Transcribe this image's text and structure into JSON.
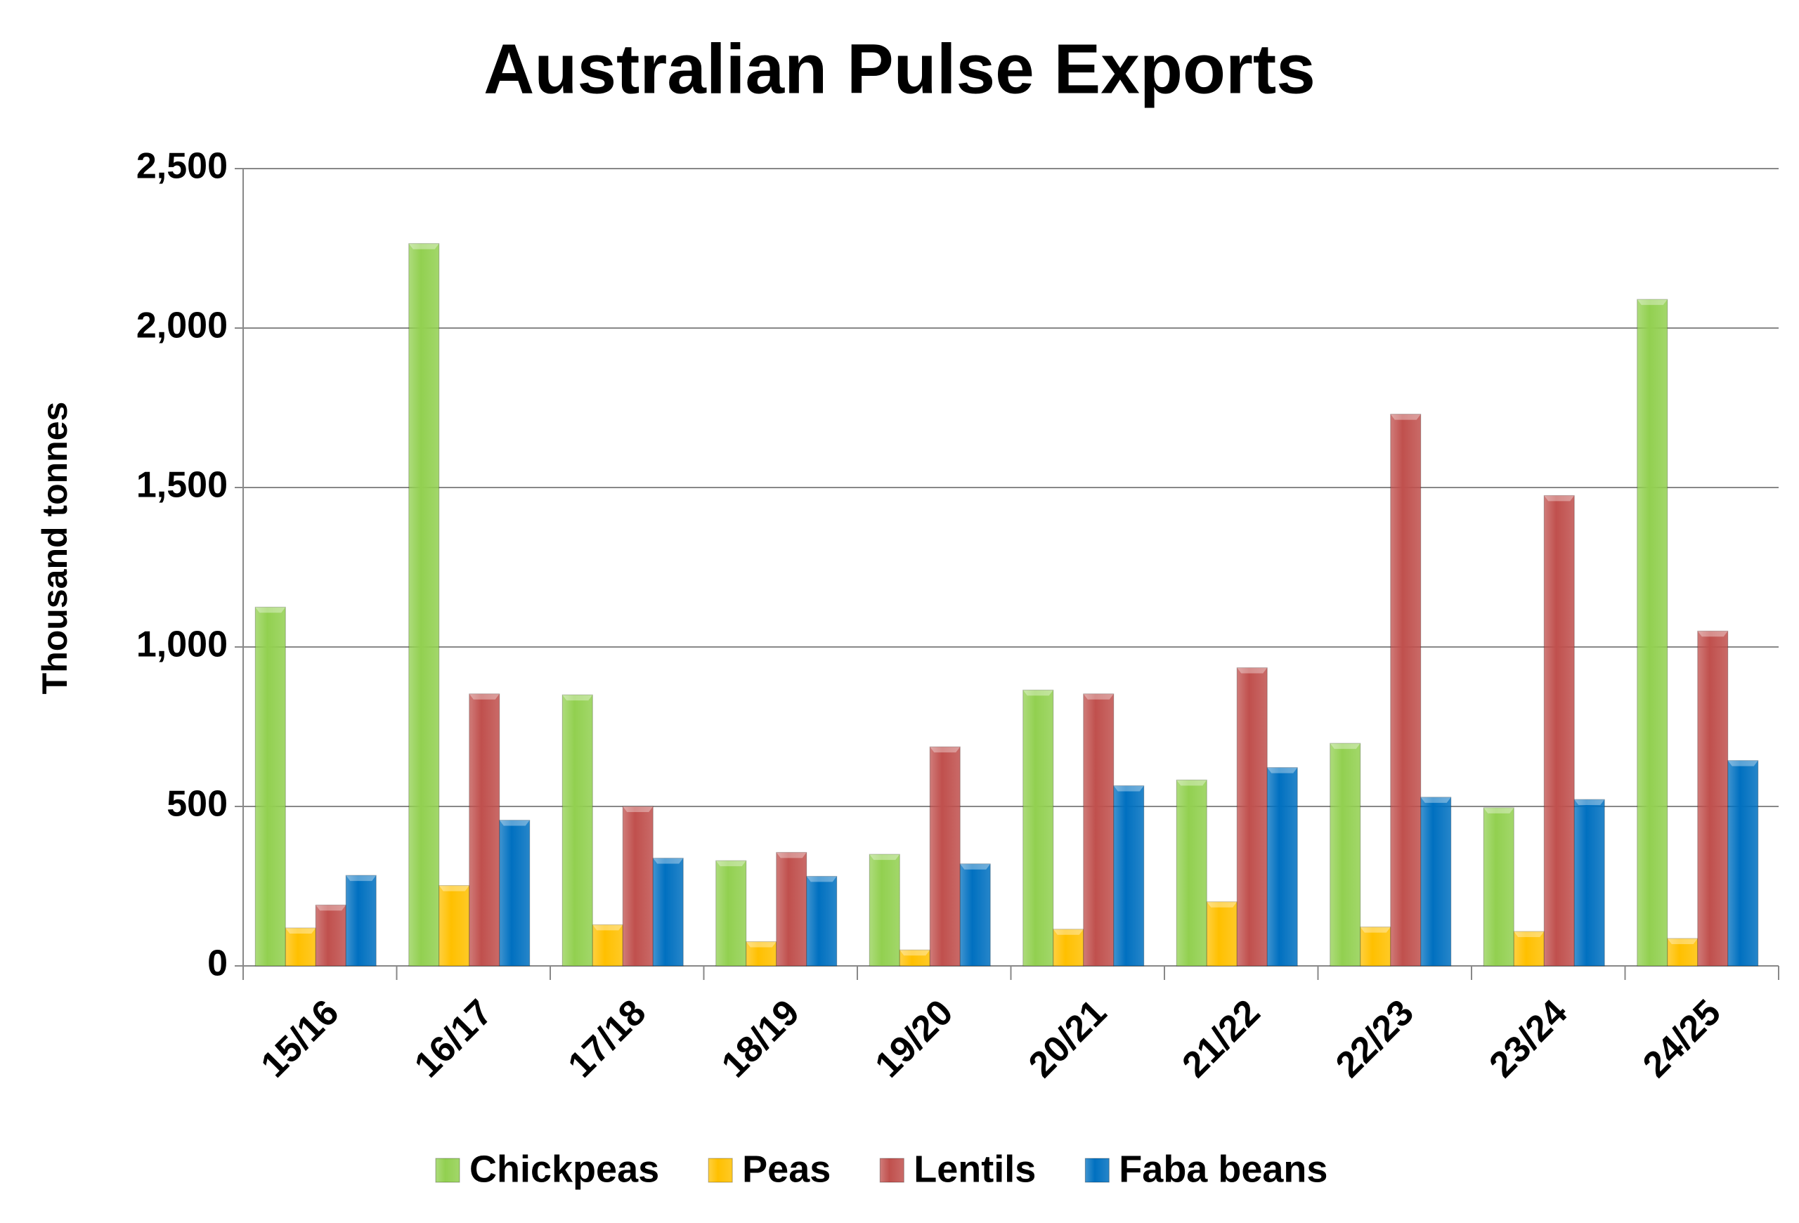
{
  "chart_data": {
    "type": "bar",
    "title": "Australian Pulse Exports",
    "y_label": "Thousand tonnes",
    "categories": [
      "15/16",
      "16/17",
      "17/18",
      "18/19",
      "19/20",
      "20/21",
      "21/22",
      "22/23",
      "23/24",
      "24/25"
    ],
    "series": [
      {
        "name": "Chickpeas",
        "color": "#92d050",
        "values": [
          1125,
          2265,
          850,
          330,
          350,
          865,
          583,
          698,
          496,
          2090
        ]
      },
      {
        "name": "Peas",
        "color": "#ffc000",
        "values": [
          119,
          252,
          129,
          76,
          50,
          115,
          201,
          122,
          108,
          86
        ]
      },
      {
        "name": "Lentils",
        "color": "#c0504d",
        "values": [
          191,
          853,
          500,
          356,
          687,
          853,
          935,
          1730,
          1475,
          1050
        ]
      },
      {
        "name": "Faba beans",
        "color": "#0070c0",
        "values": [
          284,
          457,
          338,
          281,
          320,
          565,
          622,
          529,
          522,
          644
        ]
      }
    ],
    "ylim": [
      0,
      2500
    ],
    "yticks": [
      0,
      500,
      {
        "value": 1000,
        "label": "1,000"
      },
      {
        "value": 1500,
        "label": "1,500"
      },
      {
        "value": 2000,
        "label": "2,000"
      },
      {
        "value": 2500,
        "label": "2,500"
      }
    ],
    "grid": true,
    "legend": "bottom"
  }
}
